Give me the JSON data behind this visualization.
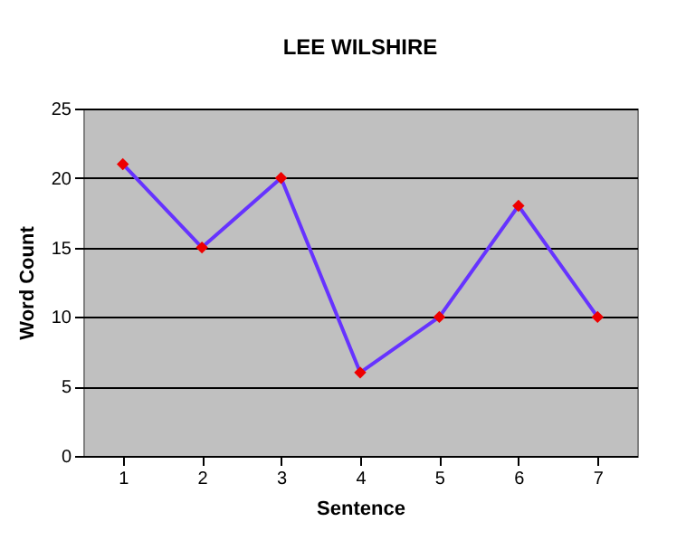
{
  "chart_data": {
    "type": "line",
    "title": "LEE WILSHIRE",
    "xlabel": "Sentence",
    "ylabel": "Word Count",
    "categories": [
      "1",
      "2",
      "3",
      "4",
      "5",
      "6",
      "7"
    ],
    "series": [
      {
        "color": "#6633ff",
        "values": [
          21,
          15,
          20,
          6,
          10,
          18,
          10
        ]
      }
    ],
    "ylim": [
      0,
      25
    ],
    "yticks": [
      0,
      5,
      10,
      15,
      20,
      25
    ],
    "grid": "y",
    "marker": "diamond",
    "legend": false
  }
}
